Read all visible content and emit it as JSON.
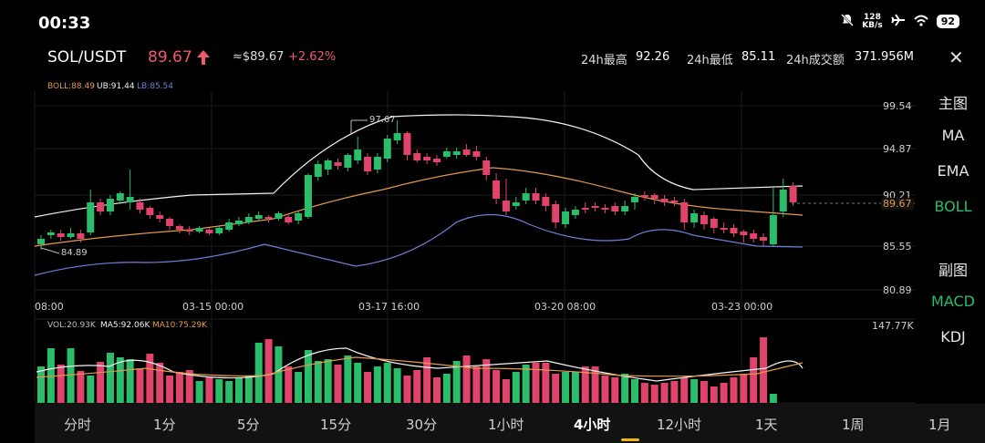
{
  "status": {
    "time": "00:33",
    "speed_value": "128",
    "speed_unit": "KB/s",
    "battery": "92"
  },
  "header": {
    "pair": "SOL/USDT",
    "price": "89.67",
    "usd_price": "≈$89.67",
    "change": "+2.62%",
    "high_label": "24h最高",
    "high_value": "92.26",
    "low_label": "24h最低",
    "low_value": "85.11",
    "turnover_label": "24h成交额",
    "turnover_value": "371.956M"
  },
  "indicators": {
    "boll": "BOLL:88.49",
    "ub": "UB:91.44",
    "lb": "LB:85.54"
  },
  "volume_legend": {
    "vol": "VOL:20.93K",
    "ma5": "MA5:92.06K",
    "ma10": "MA10:75.29K"
  },
  "price_axis": [
    "99.54",
    "94.87",
    "90.21",
    "85.55",
    "80.89"
  ],
  "current_price_tag": "89.67",
  "max_label": "97.67",
  "min_label": "84.89",
  "volume_axis_max": "147.77K",
  "time_axis": [
    "08:00",
    "03-15 00:00",
    "03-17 16:00",
    "03-20 08:00",
    "03-23 00:00"
  ],
  "side_menu": {
    "main_header": "主图",
    "main_items": [
      "MA",
      "EMA",
      "BOLL"
    ],
    "sub_header": "副图",
    "sub_items": [
      "MACD",
      "KDJ"
    ]
  },
  "timeframes": [
    "分时",
    "1分",
    "5分",
    "15分",
    "30分",
    "1小时",
    "4小时",
    "12小时",
    "1天",
    "1周",
    "1月"
  ],
  "active_timeframe": "4小时",
  "colors": {
    "up": "#2bbd6a",
    "down": "#e0446a",
    "boll_mid": "#e39a4d",
    "boll_upper": "#f2f2f2",
    "boll_lower": "#6f7fd9",
    "accent": "#f0b90b"
  }
}
